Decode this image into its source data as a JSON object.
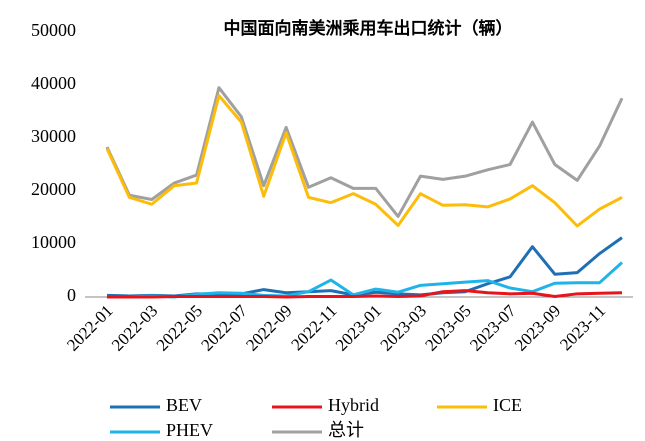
{
  "chart_data": {
    "type": "line",
    "title": "中国面向南美洲乘用车出口统计（辆）",
    "categories": [
      "2022-01",
      null,
      "2022-03",
      null,
      "2022-05",
      null,
      "2022-07",
      null,
      "2022-09",
      null,
      "2022-11",
      null,
      "2023-01",
      null,
      "2023-03",
      null,
      "2023-05",
      null,
      "2023-07",
      null,
      "2023-09",
      null,
      "2023-11",
      null
    ],
    "series": [
      {
        "name": "BEV",
        "color": "#1f6fb4",
        "values": [
          300,
          200,
          300,
          200,
          600,
          600,
          600,
          1400,
          800,
          1000,
          1200,
          400,
          900,
          600,
          400,
          800,
          1000,
          2500,
          3800,
          9500,
          4300,
          4600,
          8200,
          11200
        ]
      },
      {
        "name": "Hybrid",
        "color": "#e8141b",
        "values": [
          0,
          0,
          0,
          100,
          100,
          100,
          100,
          100,
          0,
          100,
          100,
          100,
          200,
          100,
          200,
          1000,
          1200,
          800,
          600,
          700,
          100,
          600,
          700,
          800
        ]
      },
      {
        "name": "ICE",
        "color": "#fcbd0a",
        "values": [
          28000,
          18800,
          17500,
          21000,
          21500,
          38000,
          33000,
          19000,
          31000,
          18800,
          17800,
          19500,
          17500,
          13500,
          19500,
          17300,
          17400,
          17000,
          18500,
          21000,
          17800,
          13400,
          16600,
          18800
        ]
      },
      {
        "name": "PHEV",
        "color": "#1fb4e8",
        "values": [
          0,
          0,
          200,
          0,
          500,
          800,
          700,
          300,
          200,
          1000,
          3200,
          400,
          1500,
          900,
          2200,
          2500,
          2800,
          3100,
          1700,
          1000,
          2600,
          2700,
          2700,
          6500
        ]
      },
      {
        "name": "总计",
        "color": "#a0a0a0",
        "values": [
          28300,
          19200,
          18400,
          21500,
          23000,
          39500,
          34000,
          21000,
          32000,
          20700,
          22500,
          20500,
          20500,
          15200,
          22800,
          22200,
          22800,
          24000,
          25000,
          33000,
          25000,
          22000,
          28500,
          37500
        ]
      }
    ],
    "ylim": [
      0,
      50000
    ],
    "yticks": [
      0,
      10000,
      20000,
      30000,
      40000,
      50000
    ],
    "grid": false,
    "legend": "bottom"
  }
}
